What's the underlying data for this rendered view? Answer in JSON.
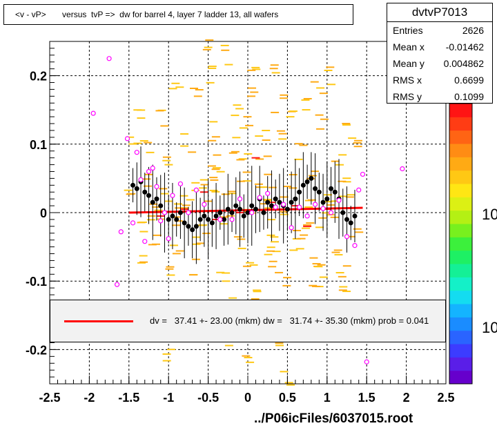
{
  "chart_data": {
    "type": "scatter",
    "title": "<v - vP>       versus  tvP =>  dw for barrel 4, layer 7 ladder 13, all wafers",
    "xlim": [
      -2.5,
      2.5
    ],
    "ylim": [
      -0.25,
      0.25
    ],
    "x_ticks": [
      "-2.5",
      "-2",
      "-1.5",
      "-1",
      "-0.5",
      "0",
      "0.5",
      "1",
      "1.5",
      "2",
      "2.5"
    ],
    "y_ticks": [
      "0.2",
      "0.1",
      "0",
      "-0.1",
      "-0.2"
    ],
    "z_ticks": [
      "10",
      "10"
    ],
    "grid": true,
    "stats": {
      "name": "dvtvP7013",
      "rows": [
        {
          "label": "Entries",
          "value": "2626"
        },
        {
          "label": "Mean x",
          "value": "-0.01462"
        },
        {
          "label": "Mean y",
          "value": "0.004862"
        },
        {
          "label": "RMS x",
          "value": "0.6699"
        },
        {
          "label": "RMS y",
          "value": "0.1099"
        }
      ]
    },
    "fit": {
      "text": "dv =   37.41 +- 23.00 (mkm) dw =   31.74 +- 35.30 (mkm) prob = 0.041",
      "x": [
        -1.5,
        1.45
      ],
      "y": [
        0.0,
        0.007
      ]
    },
    "profile_points": {
      "x": [
        -1.45,
        -1.4,
        -1.35,
        -1.3,
        -1.25,
        -1.2,
        -1.15,
        -1.1,
        -1.05,
        -1.0,
        -0.95,
        -0.9,
        -0.85,
        -0.8,
        -0.75,
        -0.7,
        -0.65,
        -0.6,
        -0.55,
        -0.5,
        -0.45,
        -0.4,
        -0.35,
        -0.3,
        -0.25,
        -0.2,
        -0.15,
        -0.1,
        -0.05,
        0.0,
        0.05,
        0.1,
        0.15,
        0.2,
        0.25,
        0.3,
        0.35,
        0.4,
        0.45,
        0.5,
        0.55,
        0.6,
        0.65,
        0.7,
        0.75,
        0.8,
        0.85,
        0.9,
        0.95,
        1.0,
        1.05,
        1.1,
        1.15,
        1.2,
        1.25,
        1.3,
        1.35
      ],
      "y": [
        0.04,
        0.035,
        0.045,
        0.03,
        0.025,
        0.015,
        0.02,
        0.01,
        0.0,
        -0.01,
        -0.005,
        -0.01,
        0.0,
        -0.015,
        -0.02,
        -0.025,
        -0.02,
        -0.01,
        -0.005,
        -0.01,
        -0.015,
        -0.005,
        0.0,
        -0.01,
        0.005,
        0.0,
        0.01,
        0.005,
        -0.005,
        0.0,
        0.01,
        0.005,
        0.02,
        0.0,
        0.015,
        0.01,
        0.02,
        0.015,
        0.01,
        0.005,
        0.015,
        0.02,
        0.03,
        0.04,
        0.045,
        0.05,
        0.035,
        0.03,
        0.015,
        0.02,
        0.035,
        0.03,
        0.02,
        0.0,
        -0.01,
        -0.015,
        -0.005
      ]
    },
    "open_points": {
      "x": [
        -1.95,
        -1.75,
        -1.65,
        -1.6,
        -1.52,
        -1.45,
        -1.4,
        -1.35,
        -1.3,
        -1.25,
        -1.2,
        -1.15,
        -1.1,
        -1.05,
        -1.0,
        -0.95,
        -0.85,
        -0.75,
        -0.65,
        -0.55,
        -0.35,
        -0.2,
        -0.1,
        0.05,
        0.15,
        0.25,
        0.35,
        0.45,
        0.55,
        0.65,
        0.75,
        0.85,
        0.95,
        1.05,
        1.15,
        1.25,
        1.35,
        1.4,
        1.45,
        1.5,
        1.95
      ],
      "y": [
        0.145,
        0.225,
        -0.105,
        -0.028,
        0.108,
        -0.015,
        0.088,
        0.048,
        -0.042,
        0.06,
        0.065,
        0.038,
        -0.012,
        0.0,
        -0.038,
        0.025,
        0.042,
        0.0,
        0.033,
        0.012,
        -0.01,
        -0.01,
        0.02,
        0.0,
        0.022,
        0.028,
        0.008,
        0.012,
        -0.022,
        0.008,
        -0.005,
        0.012,
        0.006,
        0.0,
        0.018,
        -0.035,
        -0.048,
        0.033,
        0.056,
        -0.218,
        0.064
      ]
    },
    "scatter_bins": {
      "x": [
        -1.45,
        -1.35,
        -1.3,
        -1.2,
        -1.15,
        -1.05,
        -1.0,
        -0.9,
        -0.85,
        -0.75,
        -0.7,
        -0.6,
        -0.55,
        -0.45,
        -0.4,
        -0.3,
        -0.25,
        -0.15,
        -0.1,
        0.0,
        0.05,
        0.15,
        0.2,
        0.3,
        0.35,
        0.45,
        0.5,
        0.6,
        0.65,
        0.75,
        0.8,
        0.9,
        0.95,
        1.05,
        1.1,
        1.2,
        1.25,
        1.35,
        -1.4,
        -1.1,
        -0.8,
        -0.5,
        -0.2,
        0.1,
        0.4,
        0.7,
        1.0,
        1.3,
        -1.25,
        -0.95,
        -0.65,
        -0.35,
        -0.05,
        0.25,
        0.55,
        0.85,
        1.15,
        -1.3,
        -0.9,
        -0.6,
        -0.3,
        0.0,
        0.3,
        0.6,
        0.9,
        1.2,
        -1.0,
        -0.5,
        0.0,
        0.5,
        1.0,
        -0.75,
        -0.25,
        0.25,
        0.75,
        -1.45,
        -0.15,
        0.45,
        1.25,
        -0.45,
        0.15,
        0.65,
        -1.15,
        -0.85,
        -0.55,
        0.35,
        0.95,
        -0.35,
        0.05,
        0.55,
        1.05,
        -0.65,
        -0.05,
        0.85,
        0.2,
        -1.35,
        1.35,
        -0.2,
        0.4,
        0.8
      ],
      "y": [
        0.02,
        -0.02,
        0.05,
        0.0,
        -0.04,
        0.03,
        0.08,
        -0.06,
        0.01,
        0.1,
        -0.08,
        0.04,
        -0.03,
        0.12,
        0.06,
        -0.1,
        0.02,
        0.15,
        -0.05,
        0.0,
        0.18,
        -0.12,
        0.07,
        0.03,
        -0.07,
        0.11,
        0.01,
        -0.04,
        0.09,
        -0.02,
        0.05,
        -0.09,
        0.13,
        0.0,
        -0.05,
        0.06,
        0.02,
        -0.03,
        -0.12,
        0.14,
        -0.14,
        0.2,
        -0.18,
        0.22,
        -0.2,
        0.16,
        -0.16,
        0.12,
        0.09,
        -0.09,
        0.17,
        -0.15,
        0.06,
        -0.06,
        0.14,
        -0.11,
        0.08,
        -0.06,
        0.19,
        -0.19,
        0.23,
        -0.22,
        0.21,
        -0.17,
        0.18,
        -0.08,
        -0.21,
        0.24,
        0.13,
        -0.24,
        0.2,
        0.01,
        -0.01,
        0.0,
        0.02,
        0.1,
        0.1,
        -0.1,
        -0.1,
        0.04,
        0.04,
        -0.04,
        0.0,
        -0.02,
        0.03,
        -0.03,
        -0.01,
        0.07,
        -0.07,
        0.05,
        0.03,
        -0.05,
        0.08,
        -0.08,
        0.11,
        0.15,
        0.1,
        -0.13,
        0.16,
        -0.16
      ]
    },
    "red_bins": {
      "x": [
        -0.8,
        -0.4,
        -0.1,
        0.3,
        0.6,
        1.0,
        -1.1,
        0.1,
        -0.55,
        0.75
      ],
      "y": [
        0.005,
        -0.01,
        0.0,
        0.015,
        0.01,
        0.005,
        -0.005,
        0.08,
        0.03,
        -0.02
      ]
    },
    "palette": [
      "#6600cc",
      "#5a1ee8",
      "#3c3cff",
      "#2a64ff",
      "#1a8cff",
      "#14b4ff",
      "#14dcf0",
      "#14f0c8",
      "#14f096",
      "#1ef064",
      "#3cf03c",
      "#78f01e",
      "#b4f014",
      "#dcf014",
      "#ffe614",
      "#ffc814",
      "#ffaa14",
      "#ff8c14",
      "#ff6414",
      "#ff3c14",
      "#ff1414"
    ]
  }
}
